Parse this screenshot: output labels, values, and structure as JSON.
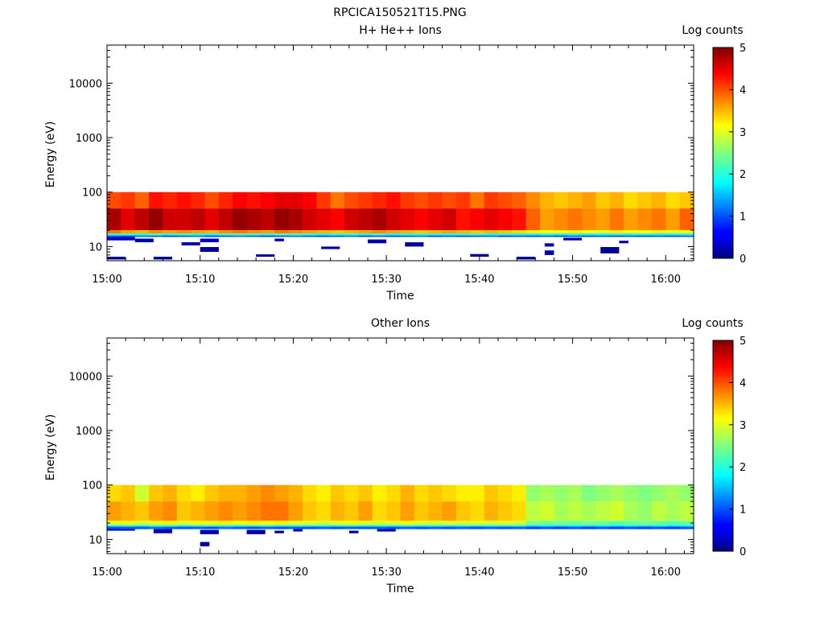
{
  "figure_title": "RPCICA150521T15.PNG",
  "chart_data": [
    {
      "type": "heatmap",
      "title": "H+ He++ Ions",
      "xlabel": "Time",
      "ylabel": "Energy (eV)",
      "yscale": "log",
      "ylim": [
        5.5,
        50000
      ],
      "y_ticks": [
        "10",
        "100",
        "1000",
        "10000"
      ],
      "x_ticks": [
        "15:00",
        "15:10",
        "15:20",
        "15:30",
        "15:40",
        "15:50",
        "16:00"
      ],
      "x_range": [
        "15:00",
        "16:03"
      ],
      "colorbar": {
        "label": "Log counts",
        "range": [
          0,
          5
        ],
        "ticks": [
          "0",
          "1",
          "2",
          "3",
          "4",
          "5"
        ]
      },
      "band": {
        "levels": [
          {
            "energy_range": [
              50,
              100
            ],
            "log_counts": [
              4.0,
              4.1,
              3.9,
              4.3,
              4.2,
              4.3,
              4.2,
              4.0,
              4.2,
              4.4,
              4.3,
              4.4,
              4.5,
              4.5,
              4.4,
              4.1,
              3.8,
              4.0,
              4.1,
              4.2,
              4.3,
              4.1,
              4.0,
              4.1,
              4.0,
              4.1,
              3.8,
              4.1,
              4.0,
              3.9,
              3.7,
              3.5,
              3.4,
              3.5,
              3.6,
              3.4,
              3.5,
              3.3,
              3.4,
              3.5,
              3.3,
              3.4
            ]
          },
          {
            "energy_range": [
              20,
              50
            ],
            "log_counts": [
              4.8,
              4.5,
              4.7,
              4.9,
              4.6,
              4.6,
              4.7,
              4.5,
              4.7,
              4.9,
              4.8,
              4.7,
              4.9,
              4.8,
              4.6,
              4.5,
              4.4,
              4.6,
              4.7,
              4.8,
              4.6,
              4.5,
              4.4,
              4.5,
              4.6,
              4.3,
              4.4,
              4.5,
              4.4,
              4.3,
              3.9,
              3.6,
              3.7,
              3.8,
              3.7,
              3.6,
              3.8,
              3.6,
              3.7,
              3.8,
              3.6,
              3.9
            ]
          },
          {
            "energy_range": [
              17.5,
              20
            ],
            "log_counts": [
              3.8,
              3.6,
              3.5,
              3.7,
              3.6,
              3.7,
              3.6,
              3.5,
              3.7,
              3.8,
              3.7,
              3.6,
              3.8,
              3.7,
              3.6,
              3.5,
              3.4,
              3.5,
              3.6,
              3.7,
              3.6,
              3.5,
              3.4,
              3.5,
              3.6,
              3.5,
              3.4,
              3.5,
              3.4,
              3.3,
              3.2,
              3.1,
              3.1,
              3.2,
              3.1,
              3.0,
              3.2,
              3.1,
              3.1,
              3.2,
              3.0,
              3.1
            ]
          },
          {
            "energy_range": [
              16,
              17.5
            ],
            "log_counts": [
              2.1,
              2.2,
              2.0,
              2.3,
              2.1,
              2.2,
              2.1,
              2.0,
              2.2,
              2.3,
              2.2,
              2.1,
              2.3,
              2.2,
              2.1,
              2.0,
              2.1,
              2.2,
              2.1,
              2.2,
              2.0,
              2.1,
              2.2,
              2.1,
              2.0,
              2.1,
              2.2,
              2.0,
              2.1,
              2.0,
              2.0,
              2.1,
              2.0,
              2.1,
              2.0,
              2.0,
              2.1,
              2.0,
              2.1,
              2.0,
              2.0,
              2.1
            ]
          },
          {
            "energy_range": [
              15,
              16
            ],
            "log_counts": [
              1.1,
              1.0,
              1.2,
              1.1,
              1.0,
              1.1,
              1.2,
              1.0,
              1.1,
              1.2,
              1.1,
              1.0,
              1.1,
              1.2,
              1.1,
              1.0,
              1.1,
              1.2,
              1.0,
              1.1,
              1.0,
              1.1,
              1.2,
              1.0,
              1.1,
              1.0,
              1.1,
              1.2,
              1.0,
              1.1,
              1.0,
              1.1,
              1.0,
              1.1,
              1.0,
              1.1,
              1.0,
              1.1,
              1.0,
              1.1,
              1.0,
              1.1
            ]
          }
        ],
        "sparse": [
          {
            "t": [
              "15:00",
              "15:03"
            ],
            "e": [
              13,
              15
            ],
            "v": 0.3
          },
          {
            "t": [
              "15:03",
              "15:05"
            ],
            "e": [
              12,
              14
            ],
            "v": 0.2
          },
          {
            "t": [
              "15:08",
              "15:10"
            ],
            "e": [
              10.5,
              12
            ],
            "v": 0.2
          },
          {
            "t": [
              "15:10",
              "15:12"
            ],
            "e": [
              8,
              9.8
            ],
            "v": 0.1
          },
          {
            "t": [
              "15:10",
              "15:12"
            ],
            "e": [
              12,
              14
            ],
            "v": 0.3
          },
          {
            "t": [
              "15:16",
              "15:18"
            ],
            "e": [
              6.5,
              7.2
            ],
            "v": 0.1
          },
          {
            "t": [
              "15:18",
              "15:19"
            ],
            "e": [
              12.5,
              14
            ],
            "v": 0.2
          },
          {
            "t": [
              "15:23",
              "15:25"
            ],
            "e": [
              9,
              10
            ],
            "v": 0.1
          },
          {
            "t": [
              "15:28",
              "15:30"
            ],
            "e": [
              11.5,
              13.5
            ],
            "v": 0.2
          },
          {
            "t": [
              "15:32",
              "15:34"
            ],
            "e": [
              10,
              12
            ],
            "v": 0.1
          },
          {
            "t": [
              "15:39",
              "15:41"
            ],
            "e": [
              6.5,
              7.3
            ],
            "v": 0.1
          },
          {
            "t": [
              "15:44",
              "15:46"
            ],
            "e": [
              5.8,
              6.5
            ],
            "v": 0.1
          },
          {
            "t": [
              "15:47",
              "15:48"
            ],
            "e": [
              10,
              11.5
            ],
            "v": 0.3
          },
          {
            "t": [
              "15:47",
              "15:48"
            ],
            "e": [
              7,
              8.5
            ],
            "v": 0.2
          },
          {
            "t": [
              "15:49",
              "15:51"
            ],
            "e": [
              13,
              14.5
            ],
            "v": 0.2
          },
          {
            "t": [
              "15:53",
              "15:55"
            ],
            "e": [
              7.5,
              9.8
            ],
            "v": 0.1
          },
          {
            "t": [
              "15:55",
              "15:56"
            ],
            "e": [
              11.5,
              12.8
            ],
            "v": 0.2
          },
          {
            "t": [
              "15:00",
              "15:02"
            ],
            "e": [
              5.8,
              6.5
            ],
            "v": 0.1
          },
          {
            "t": [
              "15:05",
              "15:07"
            ],
            "e": [
              5.8,
              6.5
            ],
            "v": 0.1
          }
        ]
      }
    },
    {
      "type": "heatmap",
      "title": "Other Ions",
      "xlabel": "Time",
      "ylabel": "Energy (eV)",
      "yscale": "log",
      "ylim": [
        5.5,
        50000
      ],
      "y_ticks": [
        "10",
        "100",
        "1000",
        "10000"
      ],
      "x_ticks": [
        "15:00",
        "15:10",
        "15:20",
        "15:30",
        "15:40",
        "15:50",
        "16:00"
      ],
      "x_range": [
        "15:00",
        "16:03"
      ],
      "colorbar": {
        "label": "Log counts",
        "range": [
          0,
          5
        ],
        "ticks": [
          "0",
          "1",
          "2",
          "3",
          "4",
          "5"
        ]
      },
      "band": {
        "levels": [
          {
            "energy_range": [
              50,
              100
            ],
            "log_counts": [
              3.3,
              3.4,
              2.9,
              3.4,
              3.5,
              3.3,
              3.2,
              3.4,
              3.5,
              3.5,
              3.6,
              3.7,
              3.6,
              3.5,
              3.3,
              3.2,
              3.4,
              3.3,
              3.4,
              3.2,
              3.3,
              3.5,
              3.3,
              3.4,
              3.3,
              3.2,
              3.2,
              3.4,
              3.3,
              3.2,
              2.6,
              2.7,
              2.6,
              2.7,
              2.5,
              2.6,
              2.7,
              2.6,
              2.5,
              2.6,
              2.7,
              2.6
            ]
          },
          {
            "energy_range": [
              22,
              50
            ],
            "log_counts": [
              3.6,
              3.5,
              3.4,
              3.6,
              3.7,
              3.4,
              3.5,
              3.6,
              3.7,
              3.6,
              3.7,
              3.8,
              3.8,
              3.6,
              3.4,
              3.3,
              3.5,
              3.4,
              3.6,
              3.3,
              3.4,
              3.6,
              3.4,
              3.5,
              3.6,
              3.4,
              3.3,
              3.5,
              3.4,
              3.3,
              2.8,
              2.9,
              2.7,
              2.8,
              2.7,
              2.8,
              2.9,
              2.7,
              2.6,
              2.8,
              2.7,
              2.8
            ]
          },
          {
            "energy_range": [
              18.5,
              22
            ],
            "log_counts": [
              3.0,
              3.1,
              2.9,
              3.0,
              3.2,
              3.0,
              3.1,
              3.0,
              3.2,
              3.1,
              3.2,
              3.1,
              3.2,
              3.0,
              3.0,
              2.9,
              3.0,
              3.1,
              3.0,
              2.9,
              3.0,
              3.1,
              3.0,
              2.9,
              3.0,
              2.9,
              3.0,
              2.9,
              3.0,
              2.9,
              2.5,
              2.4,
              2.5,
              2.4,
              2.5,
              2.4,
              2.3,
              2.4,
              2.5,
              2.4,
              2.3,
              2.4
            ]
          },
          {
            "energy_range": [
              17.2,
              18.5
            ],
            "log_counts": [
              2.0,
              2.1,
              2.0,
              2.2,
              2.1,
              2.0,
              2.1,
              2.2,
              2.1,
              2.0,
              2.1,
              2.2,
              2.0,
              2.1,
              2.0,
              2.1,
              2.0,
              2.1,
              2.0,
              2.1,
              2.0,
              2.1,
              2.0,
              2.1,
              2.0,
              2.1,
              2.0,
              2.1,
              2.0,
              2.1,
              1.8,
              1.9,
              1.8,
              1.9,
              1.8,
              1.9,
              1.8,
              1.9,
              1.8,
              1.9,
              1.8,
              1.9
            ]
          },
          {
            "energy_range": [
              15.5,
              17.2
            ],
            "log_counts": [
              1.0,
              1.1,
              1.0,
              1.2,
              1.1,
              1.0,
              1.1,
              1.0,
              1.2,
              1.1,
              1.0,
              1.1,
              1.0,
              1.1,
              1.0,
              1.1,
              1.0,
              1.1,
              1.0,
              1.1,
              1.0,
              1.1,
              1.0,
              1.1,
              1.0,
              1.1,
              1.0,
              1.1,
              1.0,
              1.1,
              0.9,
              1.0,
              0.9,
              1.0,
              0.9,
              1.0,
              0.9,
              1.0,
              0.9,
              1.0,
              0.9,
              1.0
            ]
          }
        ],
        "sparse": [
          {
            "t": [
              "15:00",
              "15:03"
            ],
            "e": [
              14.5,
              15.5
            ],
            "v": 0.2
          },
          {
            "t": [
              "15:05",
              "15:07"
            ],
            "e": [
              13,
              15.5
            ],
            "v": 0.2
          },
          {
            "t": [
              "15:10",
              "15:12"
            ],
            "e": [
              12.5,
              15
            ],
            "v": 0.2
          },
          {
            "t": [
              "15:10",
              "15:11"
            ],
            "e": [
              7.5,
              9
            ],
            "v": 0.1
          },
          {
            "t": [
              "15:15",
              "15:17"
            ],
            "e": [
              12.5,
              15
            ],
            "v": 0.2
          },
          {
            "t": [
              "15:18",
              "15:19"
            ],
            "e": [
              13,
              14.5
            ],
            "v": 0.1
          },
          {
            "t": [
              "15:20",
              "15:21"
            ],
            "e": [
              14,
              15.5
            ],
            "v": 0.2
          },
          {
            "t": [
              "15:26",
              "15:27"
            ],
            "e": [
              13,
              14.5
            ],
            "v": 0.1
          },
          {
            "t": [
              "15:29",
              "15:31"
            ],
            "e": [
              14,
              15.5
            ],
            "v": 0.2
          }
        ]
      }
    }
  ]
}
